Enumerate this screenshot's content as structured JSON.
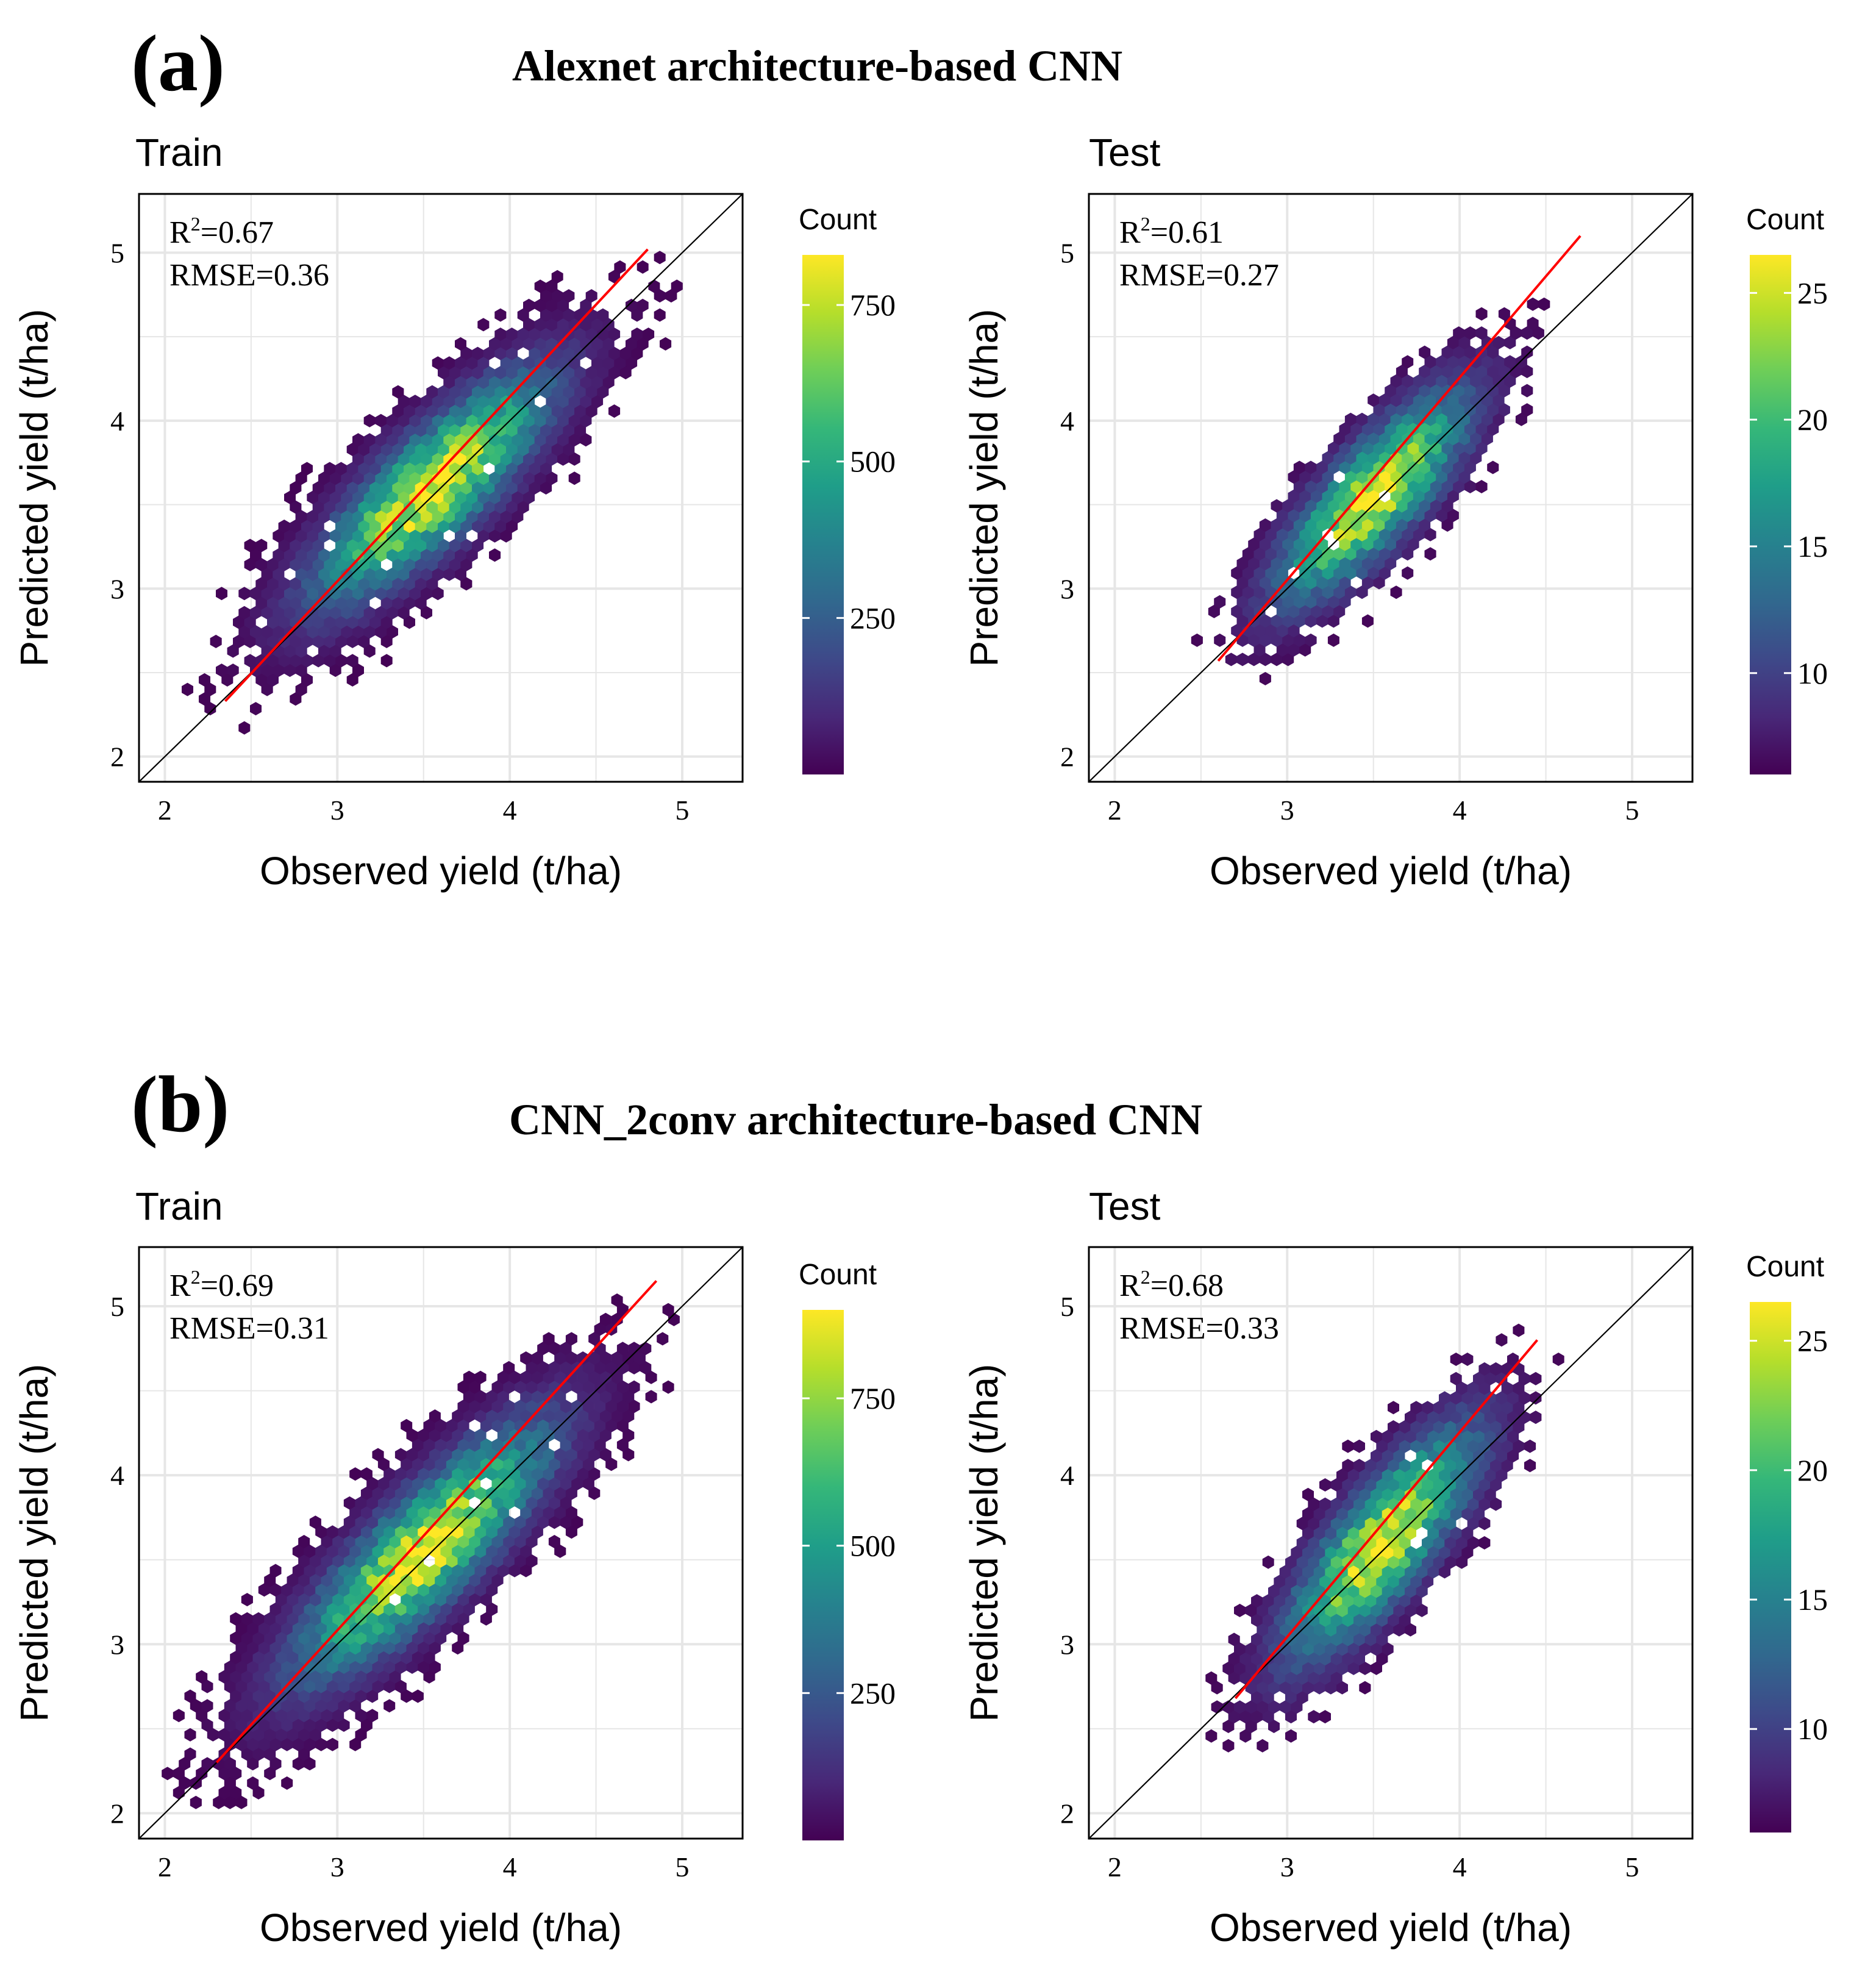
{
  "figure": {
    "sections": [
      {
        "label": "(a)",
        "title": "Alexnet architecture-based CNN"
      },
      {
        "label": "(b)",
        "title": "CNN_2conv architecture-based CNN"
      }
    ]
  },
  "colors": {
    "viridis": [
      "#440154",
      "#482878",
      "#3e4989",
      "#31688e",
      "#26828e",
      "#1f9e89",
      "#35b779",
      "#6ece58",
      "#b5de2b",
      "#fde725"
    ],
    "fit_line": "#ff0000",
    "identity_line": "#000000",
    "grid": "#e6e6e6",
    "frame": "#000000"
  },
  "chart_data": [
    {
      "type": "scatter",
      "subtype": "hexbin",
      "title": "Train",
      "xlabel": "Observed yield (t/ha)",
      "ylabel": "Predicted yield (t/ha)",
      "xlim": [
        1.85,
        5.35
      ],
      "ylim": [
        1.85,
        5.35
      ],
      "xticks": [
        2,
        3,
        4,
        5
      ],
      "yticks": [
        2,
        3,
        4,
        5
      ],
      "stats": {
        "r2_prefix": "R",
        "r2_sup": "2",
        "r2_value": "=0.67",
        "rmse": "RMSE=0.36"
      },
      "colorbar": {
        "title": "Count",
        "ticks": [
          250,
          500,
          750
        ],
        "range": [
          0,
          830
        ]
      },
      "fit_line": {
        "x": [
          2.35,
          4.8
        ],
        "y": [
          2.33,
          5.02
        ]
      },
      "identity_line": true,
      "density": {
        "center": [
          3.55,
          3.6
        ],
        "sd": [
          0.42,
          0.42
        ],
        "corr": 0.82,
        "n_hex": 700,
        "spread": 3.5,
        "seed": 11
      }
    },
    {
      "type": "scatter",
      "subtype": "hexbin",
      "title": "Test",
      "xlabel": "Observed yield (t/ha)",
      "ylabel": "Predicted yield (t/ha)",
      "xlim": [
        1.85,
        5.35
      ],
      "ylim": [
        1.85,
        5.35
      ],
      "xticks": [
        2,
        3,
        4,
        5
      ],
      "yticks": [
        2,
        3,
        4,
        5
      ],
      "stats": {
        "r2_prefix": "R",
        "r2_sup": "2",
        "r2_value": "=0.61",
        "rmse": "RMSE=0.27"
      },
      "colorbar": {
        "title": "Count",
        "ticks": [
          10,
          15,
          20,
          25
        ],
        "range": [
          6,
          26.5
        ]
      },
      "fit_line": {
        "x": [
          2.6,
          4.7
        ],
        "y": [
          2.57,
          5.1
        ]
      },
      "identity_line": true,
      "density": {
        "center": [
          3.5,
          3.55
        ],
        "sd": [
          0.34,
          0.38
        ],
        "corr": 0.8,
        "n_hex": 420,
        "spread": 3.2,
        "seed": 23
      }
    },
    {
      "type": "scatter",
      "subtype": "hexbin",
      "title": "Train",
      "xlabel": "Observed yield (t/ha)",
      "ylabel": "Predicted yield (t/ha)",
      "xlim": [
        1.85,
        5.35
      ],
      "ylim": [
        1.85,
        5.35
      ],
      "xticks": [
        2,
        3,
        4,
        5
      ],
      "yticks": [
        2,
        3,
        4,
        5
      ],
      "stats": {
        "r2_prefix": "R",
        "r2_sup": "2",
        "r2_value": "=0.69",
        "rmse": "RMSE=0.31"
      },
      "colorbar": {
        "title": "Count",
        "ticks": [
          250,
          500,
          750
        ],
        "range": [
          0,
          900
        ]
      },
      "fit_line": {
        "x": [
          2.3,
          4.85
        ],
        "y": [
          2.3,
          5.15
        ]
      },
      "identity_line": true,
      "density": {
        "center": [
          3.5,
          3.55
        ],
        "sd": [
          0.45,
          0.46
        ],
        "corr": 0.84,
        "n_hex": 720,
        "spread": 3.5,
        "seed": 37
      }
    },
    {
      "type": "scatter",
      "subtype": "hexbin",
      "title": "Test",
      "xlabel": "Observed yield (t/ha)",
      "ylabel": "Predicted yield (t/ha)",
      "xlim": [
        1.85,
        5.35
      ],
      "ylim": [
        1.85,
        5.35
      ],
      "xticks": [
        2,
        3,
        4,
        5
      ],
      "yticks": [
        2,
        3,
        4,
        5
      ],
      "stats": {
        "r2_prefix": "R",
        "r2_sup": "2",
        "r2_value": "=0.68",
        "rmse": "RMSE=0.33"
      },
      "colorbar": {
        "title": "Count",
        "ticks": [
          10,
          15,
          20,
          25
        ],
        "range": [
          6,
          26.5
        ]
      },
      "fit_line": {
        "x": [
          2.7,
          4.45
        ],
        "y": [
          2.68,
          4.8
        ]
      },
      "identity_line": true,
      "density": {
        "center": [
          3.55,
          3.6
        ],
        "sd": [
          0.34,
          0.42
        ],
        "corr": 0.8,
        "n_hex": 430,
        "spread": 3.2,
        "seed": 53
      }
    }
  ]
}
